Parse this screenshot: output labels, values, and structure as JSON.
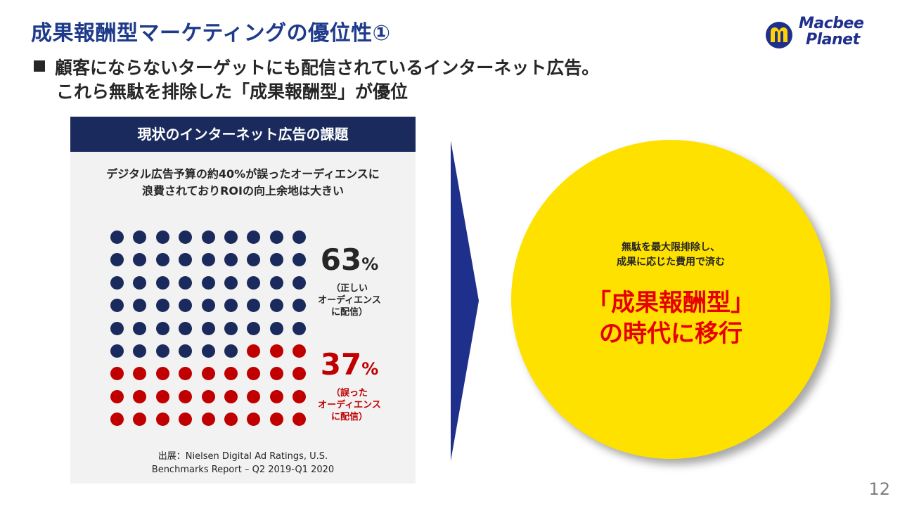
{
  "slide": {
    "title": "成果報酬型マーケティングの優位性①",
    "logo": {
      "brand_line1": "Macbee",
      "brand_line2": "Planet",
      "icon": "macbee-planet-logo-mark"
    },
    "bullet": {
      "line1": "顧客にならないターゲットにも配信されているインターネット広告。",
      "line2": "これら無駄を排除した「成果報酬型」が優位"
    },
    "page_number": "12"
  },
  "panel": {
    "header": "現状のインターネット広告の課題",
    "description_line1": "デジタル広告予算の約40%が誤ったオーディエンスに",
    "description_line2": "浪費されておりROIの向上余地は大きい",
    "dot_grid": {
      "rows": 9,
      "cols": 9,
      "correct_count": 51,
      "wrong_count": 30,
      "correct_color": "#1a2a5c",
      "wrong_color": "#c00000"
    },
    "stat_correct": {
      "value": "63",
      "unit": "%",
      "label_line1": "（正しい",
      "label_line2": "オーディエンス",
      "label_line3": "に配信）"
    },
    "stat_wrong": {
      "value": "37",
      "unit": "%",
      "label_line1": "（誤った",
      "label_line2": "オーディエンス",
      "label_line3": "に配信）"
    },
    "source_line1": "出展：Nielsen Digital Ad Ratings, U.S.",
    "source_line2": "Benchmarks Report – Q2 2019-Q1 2020"
  },
  "circle": {
    "sub_line1": "無駄を最大限排除し、",
    "sub_line2": "成果に応じた費用で済む",
    "main_line1": "「成果報酬型」",
    "main_line2": "の時代に移行",
    "fill_color": "#ffe100",
    "text_color": "#e60000"
  },
  "colors": {
    "title": "#1e3a8a",
    "navy": "#1a2a5c",
    "red": "#c00000",
    "panel_bg": "#f2f2f2"
  }
}
